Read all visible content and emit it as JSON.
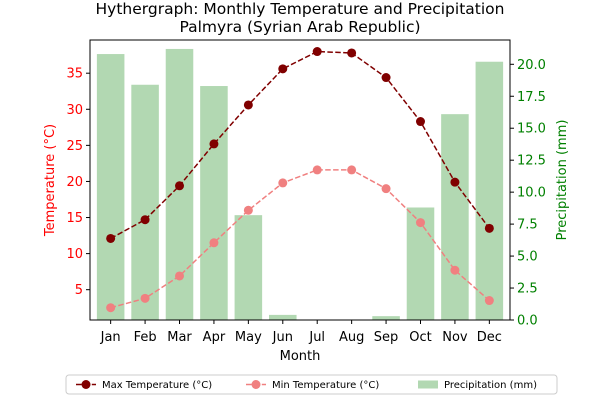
{
  "chart_data": {
    "type": "bar+line",
    "title": "Hythergraph: Monthly Temperature and Precipitation",
    "subtitle": "Palmyra (Syrian Arab Republic)",
    "xlabel": "Month",
    "ylabel_left": "Temperature (°C)",
    "ylabel_right": "Precipitation (mm)",
    "categories": [
      "Jan",
      "Feb",
      "Mar",
      "Apr",
      "May",
      "Jun",
      "Jul",
      "Aug",
      "Sep",
      "Oct",
      "Nov",
      "Dec"
    ],
    "ylim_left": [
      0.8,
      39.6
    ],
    "ylim_right": [
      0,
      21.9
    ],
    "yticks_left": [
      5,
      10,
      15,
      20,
      25,
      30,
      35
    ],
    "yticks_right": [
      0.0,
      2.5,
      5.0,
      7.5,
      10.0,
      12.5,
      15.0,
      17.5,
      20.0
    ],
    "series": [
      {
        "name": "Max Temperature (°C)",
        "kind": "line",
        "axis": "left",
        "color": "#800000",
        "values": [
          12.1,
          14.7,
          19.4,
          25.2,
          30.6,
          35.6,
          38.0,
          37.8,
          34.4,
          28.3,
          19.9,
          13.5
        ]
      },
      {
        "name": "Min Temperature (°C)",
        "kind": "line",
        "axis": "left",
        "color": "#f08080",
        "values": [
          2.5,
          3.8,
          6.9,
          11.5,
          16.0,
          19.8,
          21.6,
          21.6,
          19.0,
          14.3,
          7.7,
          3.5
        ]
      },
      {
        "name": "Precipitation (mm)",
        "kind": "bar",
        "axis": "right",
        "color": "#b2d8b2",
        "values": [
          20.8,
          18.4,
          21.2,
          18.3,
          8.2,
          0.4,
          0.0,
          0.0,
          0.3,
          8.8,
          16.1,
          20.2
        ]
      }
    ],
    "left_axis_color": "#ff0000",
    "right_axis_color": "#008000",
    "legend_position": "bottom-center",
    "grid": false
  }
}
